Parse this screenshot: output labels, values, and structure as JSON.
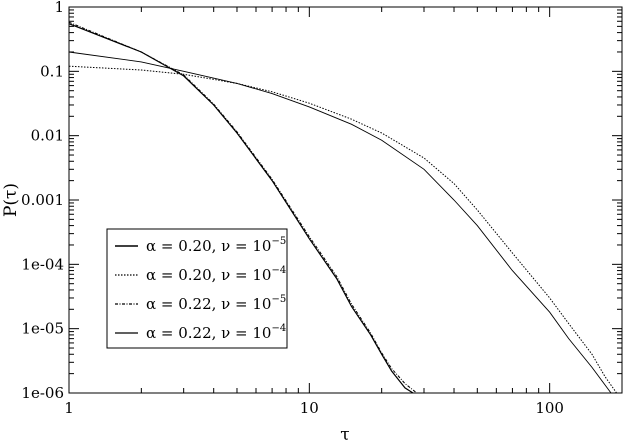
{
  "chart_data": {
    "type": "line",
    "title": "",
    "xlabel": "τ",
    "ylabel": "P(τ)",
    "xscale": "log",
    "yscale": "log",
    "xlim": [
      1,
      200
    ],
    "ylim": [
      1e-06,
      1
    ],
    "grid": false,
    "legend_position": "lower-left",
    "x_ticks": [
      {
        "value": 1,
        "label": "1"
      },
      {
        "value": 10,
        "label": "10"
      },
      {
        "value": 100,
        "label": "100"
      }
    ],
    "y_ticks": [
      {
        "value": 1,
        "label": "1"
      },
      {
        "value": 0.1,
        "label": "0.1"
      },
      {
        "value": 0.01,
        "label": "0.01"
      },
      {
        "value": 0.001,
        "label": "0.001"
      },
      {
        "value": 0.0001,
        "label": "1e-04"
      },
      {
        "value": 1e-05,
        "label": "1e-05"
      },
      {
        "value": 1e-06,
        "label": "1e-06"
      }
    ],
    "series": [
      {
        "name": "α = 0.20, ν = 10^-5",
        "legend": {
          "base": "α = 0.20, ν = 10",
          "exp": "−5"
        },
        "style": "solid",
        "color": "#000000",
        "points": [
          [
            1,
            0.55
          ],
          [
            2,
            0.2
          ],
          [
            3,
            0.085
          ],
          [
            4,
            0.03
          ],
          [
            5,
            0.011
          ],
          [
            7,
            0.002
          ],
          [
            10,
            0.00025
          ],
          [
            13,
            6e-05
          ],
          [
            15,
            2.2e-05
          ],
          [
            18,
            8e-06
          ],
          [
            20,
            4e-06
          ],
          [
            22,
            2.2e-06
          ],
          [
            25,
            1.2e-06
          ],
          [
            27,
            1e-06
          ]
        ]
      },
      {
        "name": "α = 0.20, ν = 10^-4",
        "legend": {
          "base": "α = 0.20, ν = 10",
          "exp": "−4"
        },
        "style": "dotted",
        "color": "#000000",
        "points": [
          [
            1,
            0.12
          ],
          [
            2,
            0.105
          ],
          [
            3,
            0.09
          ],
          [
            5,
            0.065
          ],
          [
            7,
            0.048
          ],
          [
            10,
            0.032
          ],
          [
            15,
            0.018
          ],
          [
            20,
            0.011
          ],
          [
            30,
            0.0045
          ],
          [
            40,
            0.0018
          ],
          [
            50,
            0.0007
          ],
          [
            70,
            0.00015
          ],
          [
            100,
            3e-05
          ],
          [
            120,
            1.2e-05
          ],
          [
            150,
            4e-06
          ],
          [
            170,
            1.8e-06
          ],
          [
            190,
            1e-06
          ]
        ]
      },
      {
        "name": "α = 0.22, ν = 10^-5",
        "legend": {
          "base": "α = 0.22, ν = 10",
          "exp": "−5"
        },
        "style": "dash-dot",
        "color": "#000000",
        "points": [
          [
            1,
            0.58
          ],
          [
            2,
            0.2
          ],
          [
            3,
            0.088
          ],
          [
            4,
            0.031
          ],
          [
            5,
            0.0115
          ],
          [
            7,
            0.0021
          ],
          [
            10,
            0.00027
          ],
          [
            13,
            6.5e-05
          ],
          [
            15,
            2.4e-05
          ],
          [
            18,
            8.5e-06
          ],
          [
            20,
            4.2e-06
          ],
          [
            22,
            2.4e-06
          ],
          [
            25,
            1.4e-06
          ],
          [
            28,
            1e-06
          ]
        ]
      },
      {
        "name": "α = 0.22, ν = 10^-4",
        "legend": {
          "base": "α = 0.22, ν = 10",
          "exp": "−4"
        },
        "style": "solid-thin",
        "color": "#000000",
        "points": [
          [
            1,
            0.2
          ],
          [
            2,
            0.14
          ],
          [
            3,
            0.1
          ],
          [
            5,
            0.065
          ],
          [
            7,
            0.045
          ],
          [
            10,
            0.028
          ],
          [
            15,
            0.015
          ],
          [
            20,
            0.0085
          ],
          [
            30,
            0.003
          ],
          [
            40,
            0.001
          ],
          [
            50,
            0.0004
          ],
          [
            70,
            8e-05
          ],
          [
            100,
            1.8e-05
          ],
          [
            120,
            7e-06
          ],
          [
            150,
            2.5e-06
          ],
          [
            180,
            1e-06
          ]
        ]
      }
    ]
  }
}
